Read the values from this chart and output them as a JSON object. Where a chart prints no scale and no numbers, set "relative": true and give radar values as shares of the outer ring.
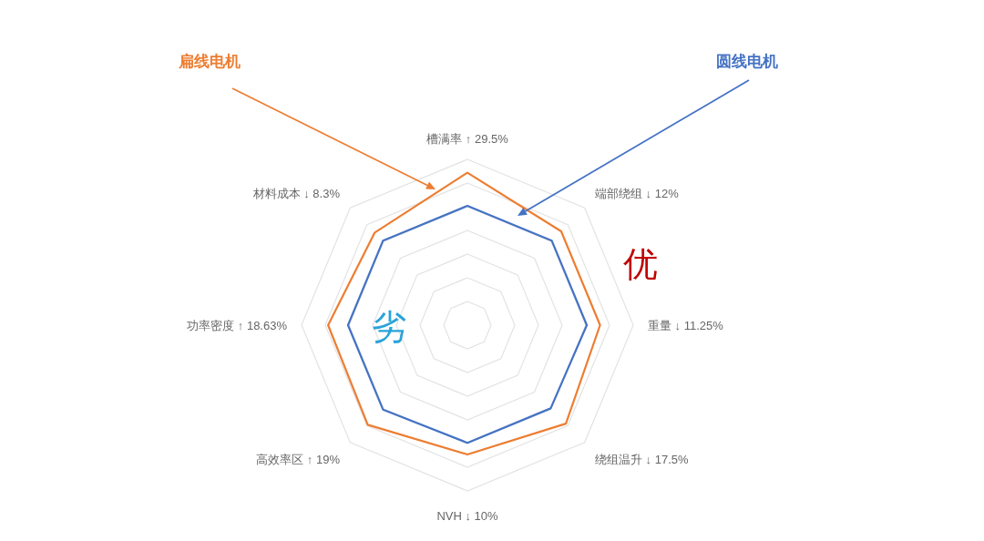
{
  "chart_data": {
    "type": "radar",
    "relative": true,
    "grid": true,
    "categories": [
      "槽满率 ↑ 29.5%",
      "端部绕组 ↓ 12%",
      "重量 ↓ 11.25%",
      "绕组温升 ↓ 17.5%",
      "NVH ↓ 10%",
      "高效率区 ↑ 19%",
      "功率密度 ↑ 18.63%",
      "材料成本 ↓ 8.3%"
    ],
    "series": [
      {
        "name": "扁线电机",
        "color": "#ed7d31",
        "values": [
          0.92,
          0.8,
          0.8,
          0.84,
          0.78,
          0.85,
          0.84,
          0.79
        ]
      },
      {
        "name": "圆线电机",
        "color": "#4472c4",
        "values": [
          0.72,
          0.72,
          0.72,
          0.71,
          0.71,
          0.72,
          0.72,
          0.72
        ]
      }
    ],
    "annotations": [
      "优",
      "劣"
    ]
  }
}
